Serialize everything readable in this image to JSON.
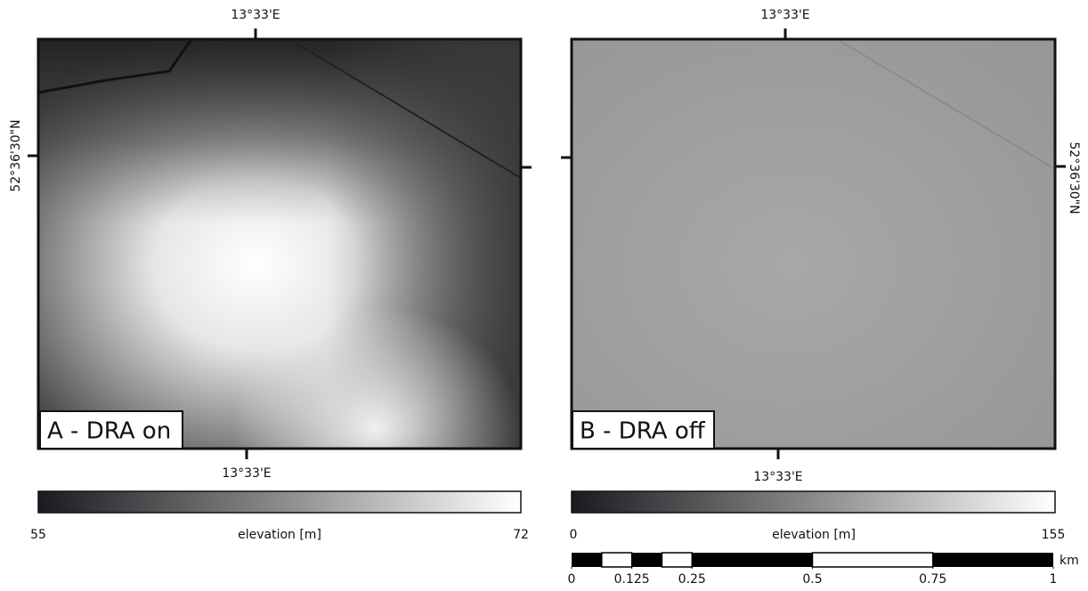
{
  "panels": [
    {
      "label": "A - DRA on",
      "top_lon": "13°33'E",
      "bottom_lon": "13°33'E",
      "lat": "52°36'30\"N",
      "colorbar": {
        "min": 55,
        "label": "elevation [m]",
        "max": 72
      }
    },
    {
      "label": "B - DRA off",
      "top_lon": "13°33'E",
      "bottom_lon": "13°33'E",
      "lat": "52°36'30\"N",
      "colorbar": {
        "min": 0,
        "label": "elevation [m]",
        "max": 155
      }
    }
  ],
  "scale_bar": {
    "ticks": [
      0,
      0.125,
      0.25,
      0.5,
      0.75,
      1
    ],
    "unit": "km"
  }
}
